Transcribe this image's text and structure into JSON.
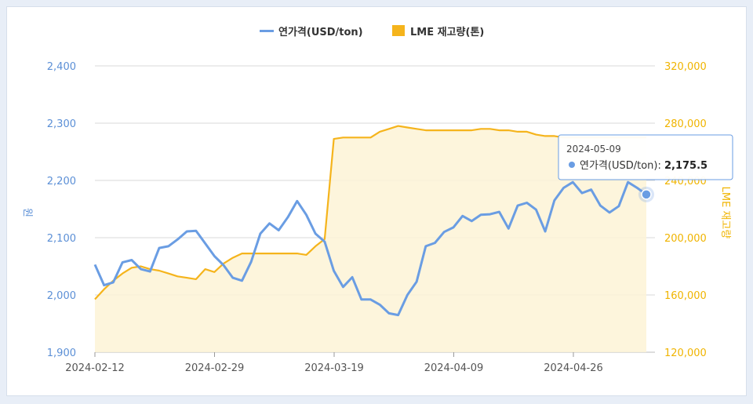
{
  "chart_data": {
    "type": "line",
    "legend": [
      {
        "label": "연가격(USD/ton)",
        "color": "#6a9de3"
      },
      {
        "label": "LME 재고량(톤)",
        "color": "#f5b41c"
      }
    ],
    "ylabel_left": "원",
    "ylabel_right": "LME 재고량",
    "y_left": {
      "min": 1900,
      "max": 2400,
      "ticks": [
        "1,900",
        "2,000",
        "2,100",
        "2,200",
        "2,300",
        "2,400"
      ]
    },
    "y_right": {
      "min": 120000,
      "max": 320000,
      "ticks": [
        "120,000",
        "160,000",
        "200,000",
        "240,000",
        "280,000",
        "320,000"
      ]
    },
    "x_tick_labels": [
      "2024-02-12",
      "2024-02-29",
      "2024-03-19",
      "2024-04-09",
      "2024-04-26"
    ],
    "series": [
      {
        "name": "연가격(USD/ton)",
        "color": "#6a9de3",
        "axis": "left",
        "values": [
          2053,
          2017,
          2022,
          2057,
          2061,
          2045,
          2041,
          2082,
          2085,
          2097,
          2111,
          2112,
          2090,
          2068,
          2052,
          2030,
          2025,
          2058,
          2107,
          2125,
          2113,
          2136,
          2164,
          2140,
          2107,
          2093,
          2042,
          2014,
          2031,
          1992,
          1992,
          1983,
          1968,
          1965,
          2000,
          2023,
          2085,
          2091,
          2110,
          2118,
          2138,
          2129,
          2140,
          2141,
          2145,
          2116,
          2156,
          2161,
          2149,
          2111,
          2165,
          2187,
          2197,
          2178,
          2184,
          2156,
          2144,
          2155,
          2197,
          2187,
          2175.5
        ]
      },
      {
        "name": "LME 재고량(톤)",
        "color": "#f5b41c",
        "axis": "right",
        "values": [
          157000,
          164000,
          170000,
          175000,
          179000,
          180000,
          178000,
          177000,
          175000,
          173000,
          172000,
          171000,
          178000,
          176000,
          182000,
          186000,
          189000,
          189000,
          189000,
          189000,
          189000,
          189000,
          189000,
          188000,
          194000,
          199000,
          269000,
          270000,
          270000,
          270000,
          270000,
          274000,
          276000,
          278000,
          277000,
          276000,
          275000,
          275000,
          275000,
          275000,
          275000,
          275000,
          276000,
          276000,
          275000,
          275000,
          274000,
          274000,
          272000,
          271000,
          271000,
          270000,
          270000,
          270000,
          270000,
          270000,
          270000,
          270000,
          270000,
          270000,
          270000
        ]
      }
    ],
    "tooltip": {
      "date": "2024-05-09",
      "label": "연가격(USD/ton): ",
      "value": "2,175.5"
    }
  }
}
